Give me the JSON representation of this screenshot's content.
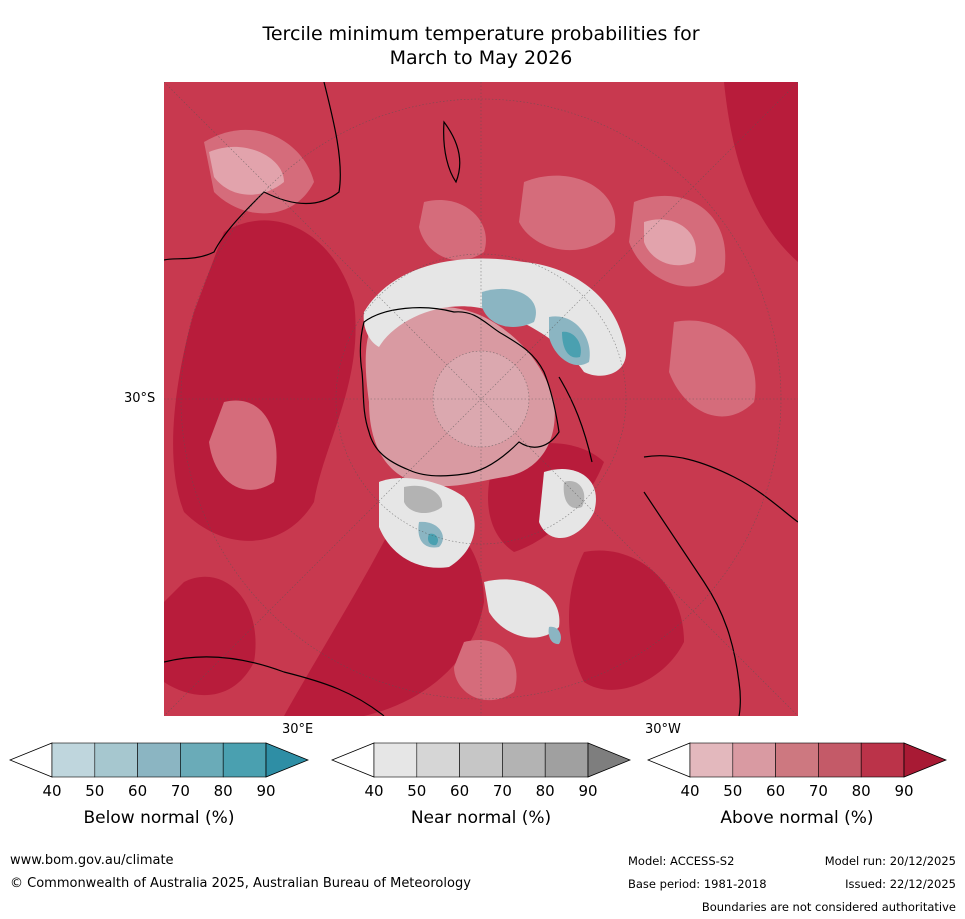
{
  "title_line1": "Tercile minimum temperature probabilities for",
  "title_line2": "March to May 2026",
  "map": {
    "lat_label": "30°S",
    "lon_label_east": "30°E",
    "lon_label_west": "30°W"
  },
  "colorbars": [
    {
      "label": "Below normal (%)",
      "ticks": [
        "40",
        "50",
        "60",
        "70",
        "80",
        "90"
      ],
      "colors": [
        "#bfd6dd",
        "#a6c7cf",
        "#8bb5c2",
        "#6aabb8",
        "#4aa0b0",
        "#2e8ea5"
      ]
    },
    {
      "label": "Near normal (%)",
      "ticks": [
        "40",
        "50",
        "60",
        "70",
        "80",
        "90"
      ],
      "colors": [
        "#e6e6e6",
        "#d6d6d6",
        "#c6c6c6",
        "#b3b3b3",
        "#a0a0a0",
        "#7e7e7e"
      ]
    },
    {
      "label": "Above normal (%)",
      "ticks": [
        "40",
        "50",
        "60",
        "70",
        "80",
        "90"
      ],
      "colors": [
        "#e3b8bd",
        "#d99aa2",
        "#cd7880",
        "#c45a68",
        "#bb3349",
        "#a81a34"
      ]
    }
  ],
  "colors": {
    "above_dark": "#b81c3b",
    "above_mid": "#c8394f",
    "above_light": "#d56c7b",
    "above_pale": "#e2a3ac",
    "near": "#e6e6e6",
    "below": "#8bb5c2"
  },
  "footer": {
    "url": "www.bom.gov.au/climate",
    "copyright": "© Commonwealth of Australia 2025, Australian Bureau of Meteorology",
    "model": "Model: ACCESS-S2",
    "base_period": "Base period: 1981-2018",
    "model_run": "Model run: 20/12/2025",
    "issued": "Issued: 22/12/2025",
    "disclaimer": "Boundaries are not considered authoritative"
  }
}
